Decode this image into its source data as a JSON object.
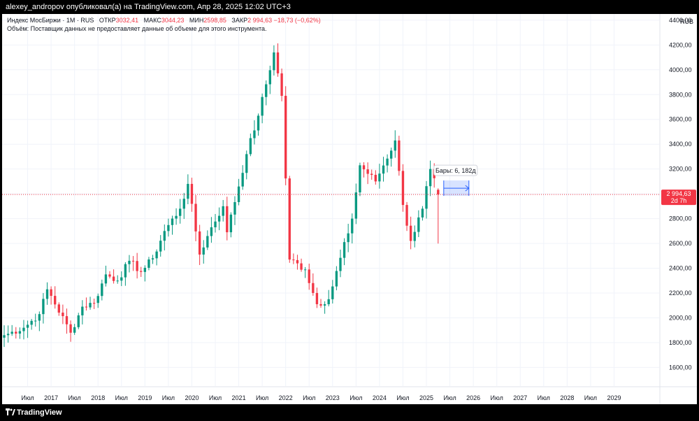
{
  "header": {
    "publisher_line": "alexey_andropov опубликовал(а) на TradingView.com, Апр 28, 2025 12:02 UTC+3"
  },
  "legend": {
    "symbol_line": "Индекс МосБиржи · 1М · RUS",
    "open_label": "ОТКР",
    "open_value": "3032,41",
    "high_label": "МАКС",
    "high_value": "3044,23",
    "low_label": "МИН",
    "low_value": "2598,85",
    "close_label": "ЗАКР",
    "close_value": "2 994,63",
    "change_value": "−18,73 (−0,62%)",
    "volume_note": "Объём: Поставщик данных не предоставляет данные об объеме для этого инструмента."
  },
  "currency": "RUB",
  "last_price": {
    "value": 2994.63,
    "label": "2 994,63",
    "countdown": "2d 7h"
  },
  "measure": {
    "label": "Бары: 6, 182д"
  },
  "footer": {
    "brand": "TradingView"
  },
  "colors": {
    "up": "#089981",
    "down": "#f23645",
    "grid": "#f0f3fa",
    "measure": "#2962ff"
  },
  "chart_data": {
    "type": "candlestick",
    "interval": "1M",
    "ylim": [
      1450,
      4450
    ],
    "y_ticks": [
      1600,
      1800,
      2000,
      2200,
      2400,
      2600,
      2800,
      3000,
      3200,
      3400,
      3600,
      3800,
      4000,
      4200,
      4400
    ],
    "y_tick_labels": [
      "1600,00",
      "1800,00",
      "2000,00",
      "2200,00",
      "2400,00",
      "2600,00",
      "2800,00",
      "3000,00",
      "3200,00",
      "3400,00",
      "3600,00",
      "3800,00",
      "4000,00",
      "4200,00",
      "4400,00"
    ],
    "x_range": [
      "2016-01",
      "2029-12"
    ],
    "x_ticks": [
      {
        "date": "2016-07",
        "label": "Июл"
      },
      {
        "date": "2017-01",
        "label": "2017"
      },
      {
        "date": "2017-07",
        "label": "Июл"
      },
      {
        "date": "2018-01",
        "label": "2018"
      },
      {
        "date": "2018-07",
        "label": "Июл"
      },
      {
        "date": "2019-01",
        "label": "2019"
      },
      {
        "date": "2019-07",
        "label": "Июл"
      },
      {
        "date": "2020-01",
        "label": "2020"
      },
      {
        "date": "2020-07",
        "label": "Июл"
      },
      {
        "date": "2021-01",
        "label": "2021"
      },
      {
        "date": "2021-07",
        "label": "Июл"
      },
      {
        "date": "2022-01",
        "label": "2022"
      },
      {
        "date": "2022-07",
        "label": "Июл"
      },
      {
        "date": "2023-01",
        "label": "2023"
      },
      {
        "date": "2023-07",
        "label": "Июл"
      },
      {
        "date": "2024-01",
        "label": "2024"
      },
      {
        "date": "2024-07",
        "label": "Июл"
      },
      {
        "date": "2025-01",
        "label": "2025"
      },
      {
        "date": "2025-07",
        "label": "Июл"
      },
      {
        "date": "2026-01",
        "label": "2026"
      },
      {
        "date": "2026-07",
        "label": "Июл"
      },
      {
        "date": "2027-01",
        "label": "2027"
      },
      {
        "date": "2027-07",
        "label": "Июл"
      },
      {
        "date": "2028-01",
        "label": "2028"
      },
      {
        "date": "2028-07",
        "label": "Июл"
      },
      {
        "date": "2029-01",
        "label": "2029"
      }
    ],
    "pivots": [
      [
        "2016-01",
        1860
      ],
      [
        "2016-06",
        1920
      ],
      [
        "2016-10",
        2030
      ],
      [
        "2016-12",
        2230
      ],
      [
        "2017-06",
        1880
      ],
      [
        "2017-09",
        2090
      ],
      [
        "2017-12",
        2120
      ],
      [
        "2018-03",
        2350
      ],
      [
        "2018-06",
        2300
      ],
      [
        "2018-09",
        2460
      ],
      [
        "2018-12",
        2370
      ],
      [
        "2019-03",
        2480
      ],
      [
        "2019-06",
        2700
      ],
      [
        "2019-10",
        2880
      ],
      [
        "2019-12",
        3080
      ],
      [
        "2020-03",
        2510
      ],
      [
        "2020-06",
        2730
      ],
      [
        "2020-09",
        2900
      ],
      [
        "2020-10",
        2690
      ],
      [
        "2021-03",
        3320
      ],
      [
        "2021-06",
        3630
      ],
      [
        "2021-10",
        4140
      ],
      [
        "2021-12",
        3790
      ],
      [
        "2022-02",
        2470
      ],
      [
        "2022-06",
        2390
      ],
      [
        "2022-09",
        2110
      ],
      [
        "2022-12",
        2150
      ],
      [
        "2023-06",
        2800
      ],
      [
        "2023-08",
        3230
      ],
      [
        "2023-12",
        3100
      ],
      [
        "2024-05",
        3430
      ],
      [
        "2024-07",
        2910
      ],
      [
        "2024-09",
        2620
      ],
      [
        "2024-12",
        2880
      ],
      [
        "2025-02",
        3200
      ],
      [
        "2025-04",
        2995
      ]
    ],
    "last": {
      "open": 3032.41,
      "high": 3044.23,
      "low": 2598.85,
      "close": 2994.63
    }
  }
}
